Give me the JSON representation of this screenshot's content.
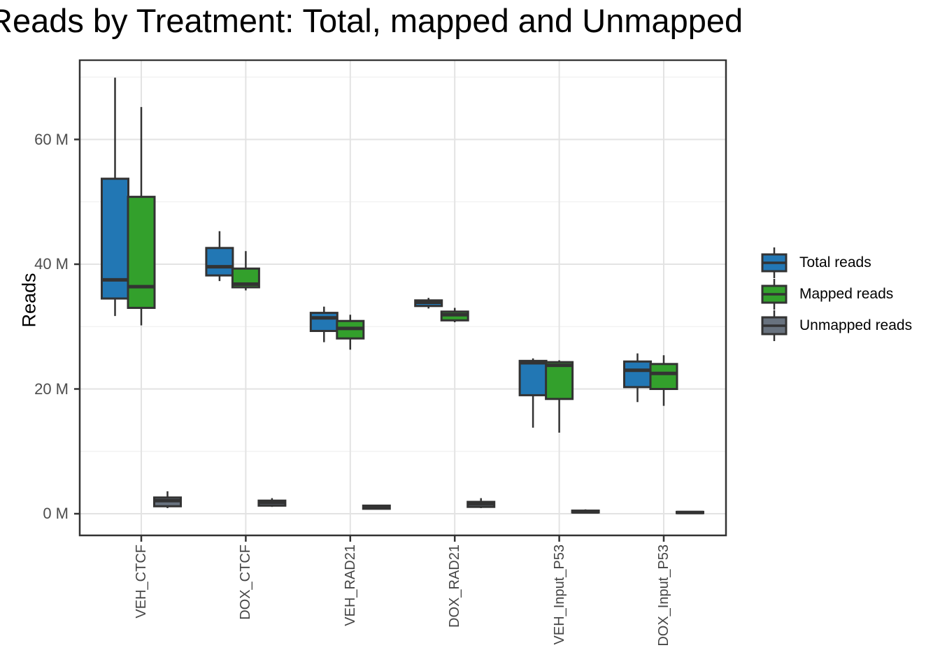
{
  "title": "Reads by Treatment: Total, mapped and Unmapped",
  "y_axis": {
    "label": "Reads",
    "ticks": [
      {
        "value": 0,
        "label": "0 M"
      },
      {
        "value": 20,
        "label": "20 M"
      },
      {
        "value": 40,
        "label": "40 M"
      },
      {
        "value": 60,
        "label": "60 M"
      }
    ],
    "minor_ticks": [
      10,
      30,
      50,
      70
    ]
  },
  "x_axis": {
    "categories": [
      "VEH_CTCF",
      "DOX_CTCF",
      "VEH_RAD21",
      "DOX_RAD21",
      "VEH_Input_P53",
      "DOX_Input_P53"
    ]
  },
  "legend": {
    "items": [
      {
        "label": "Total reads",
        "color": "#2277b4"
      },
      {
        "label": "Mapped reads",
        "color": "#33a02c"
      },
      {
        "label": "Unmapped reads",
        "color": "#68727e"
      }
    ]
  },
  "colors": {
    "box_border": "#333333",
    "grid_major": "#e3e3e3",
    "grid_minor": "#f0f0f0",
    "panel_border": "#333333",
    "tick_label": "#4d4d4d"
  },
  "chart_data": {
    "type": "boxplot",
    "title": "Reads by Treatment: Total, mapped and Unmapped",
    "xlabel": "",
    "ylabel": "Reads",
    "unit": "millions of reads (M)",
    "ylim": [
      -3.5,
      72.8
    ],
    "grid": "major and minor horizontal, major vertical",
    "legend_position": "right",
    "categories": [
      "VEH_CTCF",
      "DOX_CTCF",
      "VEH_RAD21",
      "DOX_RAD21",
      "VEH_Input_P53",
      "DOX_Input_P53"
    ],
    "series": [
      {
        "name": "Total reads",
        "color": "#2277b4",
        "boxes": [
          {
            "min": 31.7,
            "q1": 34.5,
            "median": 37.5,
            "q3": 53.7,
            "max": 69.9
          },
          {
            "min": 37.3,
            "q1": 38.2,
            "median": 39.6,
            "q3": 42.6,
            "max": 45.3
          },
          {
            "min": 27.5,
            "q1": 29.3,
            "median": 31.4,
            "q3": 32.2,
            "max": 33.2
          },
          {
            "min": 32.9,
            "q1": 33.3,
            "median": 33.9,
            "q3": 34.2,
            "max": 34.6
          },
          {
            "min": 13.8,
            "q1": 19.0,
            "median": 24.2,
            "q3": 24.5,
            "max": 24.9
          },
          {
            "min": 17.9,
            "q1": 20.3,
            "median": 23.0,
            "q3": 24.4,
            "max": 25.7
          }
        ]
      },
      {
        "name": "Mapped reads",
        "color": "#33a02c",
        "boxes": [
          {
            "min": 30.2,
            "q1": 33.0,
            "median": 36.4,
            "q3": 50.8,
            "max": 65.2
          },
          {
            "min": 35.8,
            "q1": 36.3,
            "median": 36.8,
            "q3": 39.3,
            "max": 42.1
          },
          {
            "min": 26.3,
            "q1": 28.1,
            "median": 29.7,
            "q3": 30.9,
            "max": 31.9
          },
          {
            "min": 30.7,
            "q1": 31.0,
            "median": 31.9,
            "q3": 32.4,
            "max": 33.0
          },
          {
            "min": 13.0,
            "q1": 18.4,
            "median": 23.8,
            "q3": 24.3,
            "max": 24.6
          },
          {
            "min": 17.3,
            "q1": 20.0,
            "median": 22.5,
            "q3": 24.0,
            "max": 25.4
          }
        ]
      },
      {
        "name": "Unmapped reads",
        "color": "#68727e",
        "boxes": [
          {
            "min": 0.9,
            "q1": 1.2,
            "median": 2.1,
            "q3": 2.6,
            "max": 3.6
          },
          {
            "min": 1.1,
            "q1": 1.3,
            "median": 1.8,
            "q3": 2.1,
            "max": 2.5
          },
          {
            "min": 0.7,
            "q1": 0.8,
            "median": 1.0,
            "q3": 1.3,
            "max": 1.4
          },
          {
            "min": 0.9,
            "q1": 1.1,
            "median": 1.6,
            "q3": 1.9,
            "max": 2.5
          },
          {
            "min": 0.1,
            "q1": 0.2,
            "median": 0.3,
            "q3": 0.5,
            "max": 0.7
          },
          {
            "min": 0.0,
            "q1": 0.1,
            "median": 0.2,
            "q3": 0.3,
            "max": 0.4
          }
        ]
      }
    ]
  }
}
